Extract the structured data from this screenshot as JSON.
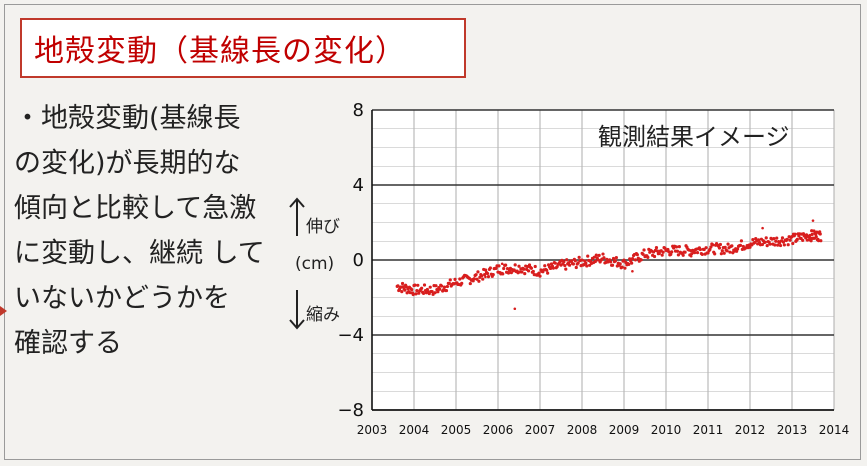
{
  "title": "地殻変動（基線長の変化）",
  "body_lines": [
    "・地殻変動(基線長",
    "の変化)が長期的な",
    "傾向と比較して急激",
    "に変動し、継続 して",
    "いないかどうかを",
    "確認する"
  ],
  "annotations": {
    "up": "伸び",
    "unit": "(cm)",
    "down": "縮み"
  },
  "colors": {
    "title": "#c00000",
    "points": "#d81e1e",
    "grid": "#555555"
  },
  "chart_data": {
    "type": "scatter",
    "title": "観測結果イメージ",
    "xlabel": "",
    "ylabel": "",
    "xlim": [
      2003,
      2014
    ],
    "ylim": [
      -8,
      8
    ],
    "x_ticks": [
      "2003",
      "2004",
      "2005",
      "2006",
      "2007",
      "2008",
      "2009",
      "2010",
      "2011",
      "2012",
      "2013",
      "2014"
    ],
    "y_ticks": [
      "8",
      "4",
      "0",
      "−4",
      "−8"
    ],
    "y_tick_values": [
      8,
      4,
      0,
      -4,
      -8
    ],
    "grid": true,
    "series": [
      {
        "x": [
          2003.6,
          2004.0,
          2004.5,
          2005.0,
          2005.5,
          2006.0,
          2006.5,
          2007.0,
          2007.5,
          2008.0,
          2008.5,
          2009.0,
          2009.5,
          2010.0,
          2010.5,
          2011.0,
          2011.5,
          2012.0,
          2012.5,
          2013.0,
          2013.4,
          2013.7
        ],
        "y": [
          -1.4,
          -1.6,
          -1.6,
          -1.2,
          -0.9,
          -0.5,
          -0.4,
          -0.6,
          -0.3,
          -0.1,
          0.1,
          -0.2,
          0.3,
          0.5,
          0.5,
          0.6,
          0.6,
          0.9,
          1.0,
          1.1,
          1.3,
          1.3
        ]
      }
    ]
  }
}
